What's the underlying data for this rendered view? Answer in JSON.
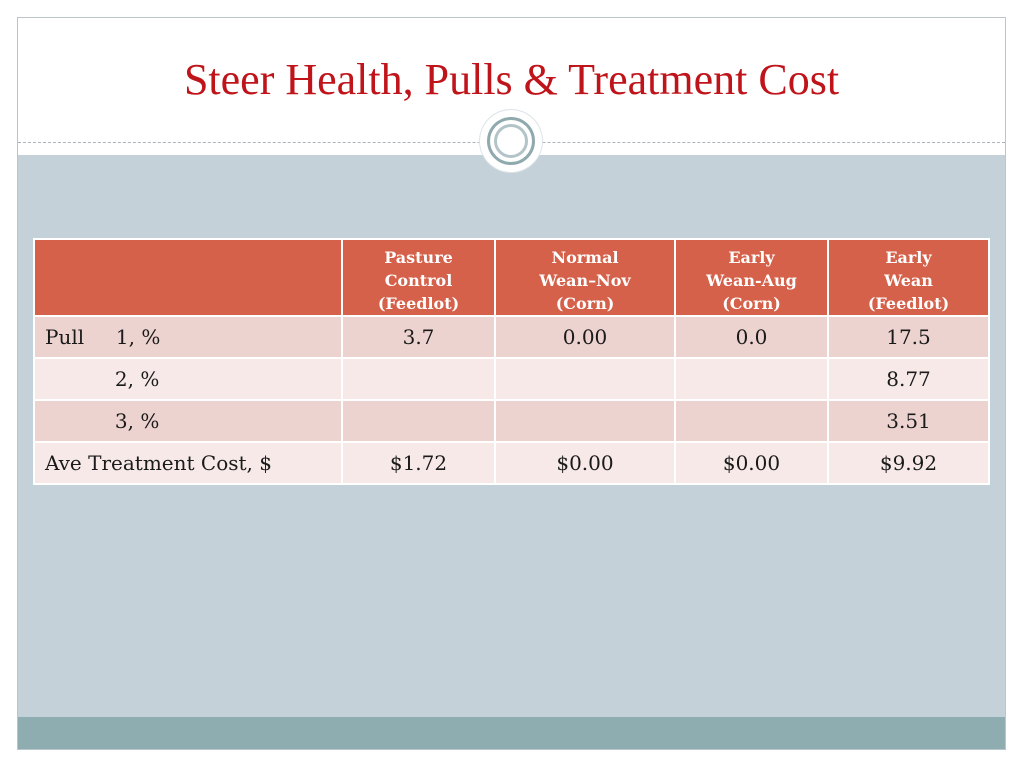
{
  "slide": {
    "title": "Steer Health, Pulls & Treatment Cost"
  },
  "table": {
    "headers": [
      "",
      [
        "Pasture",
        "Control",
        "(Feedlot)"
      ],
      [
        "Normal",
        "Wean–Nov",
        "(Corn)"
      ],
      [
        "Early",
        "Wean-Aug",
        "(Corn)"
      ],
      [
        "Early",
        "Wean",
        "(Feedlot)"
      ]
    ],
    "rows": [
      [
        "Pull     1, %",
        "3.7",
        "0.00",
        "0.0",
        "17.5"
      ],
      [
        "           2, %",
        "",
        "",
        "",
        "8.77"
      ],
      [
        "           3, %",
        "",
        "",
        "",
        "3.51"
      ],
      [
        "Ave Treatment Cost, $",
        "$1.72",
        "$0.00",
        "$0.00",
        "$9.92"
      ]
    ]
  },
  "colors": {
    "title": "#c0141b",
    "header_bg": "#d5614a",
    "row_odd": "#edd3d0",
    "row_even": "#f6e9e8",
    "content_band": "#c5d1d8",
    "footer_band": "#8dadb0"
  }
}
